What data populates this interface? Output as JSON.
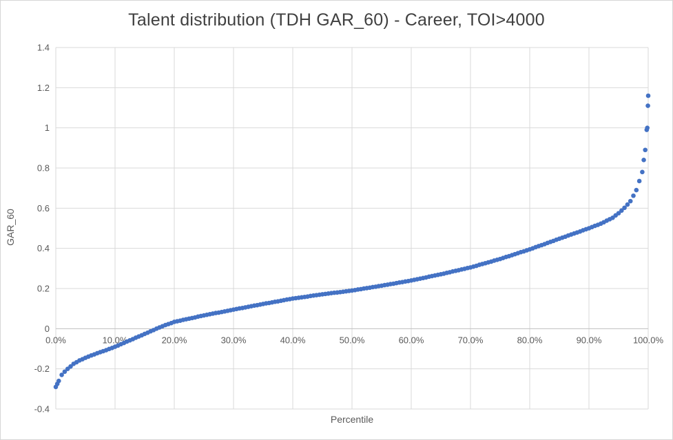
{
  "chart": {
    "title": "Talent distribution (TDH GAR_60) - Career, TOI>4000",
    "xlabel": "Percentile",
    "ylabel": "GAR_60"
  },
  "colors": {
    "marker": "#4472C4",
    "gridline": "#d9d9d9",
    "axis_line": "#bfbfbf",
    "tick_text": "#595959",
    "title_text": "#404040",
    "border": "#d6d6d6"
  },
  "chart_data": {
    "type": "scatter",
    "title": "Talent distribution (TDH GAR_60) - Career, TOI>4000",
    "xlabel": "Percentile",
    "ylabel": "GAR_60",
    "xlim": [
      0,
      100
    ],
    "ylim": [
      -0.4,
      1.4
    ],
    "grid": true,
    "legend": false,
    "marker_color": "#4472C4",
    "x_tick_values": [
      0,
      10,
      20,
      30,
      40,
      50,
      60,
      70,
      80,
      90,
      100
    ],
    "x_tick_labels": [
      "0.0%",
      "10.0%",
      "20.0%",
      "30.0%",
      "40.0%",
      "50.0%",
      "60.0%",
      "70.0%",
      "80.0%",
      "90.0%",
      "100.0%"
    ],
    "y_tick_values": [
      -0.4,
      -0.2,
      0,
      0.2,
      0.4,
      0.6,
      0.8,
      1,
      1.2,
      1.4
    ],
    "y_tick_labels": [
      "-0.4",
      "-0.2",
      "0",
      "0.2",
      "0.4",
      "0.6",
      "0.8",
      "1",
      "1.2",
      "1.4"
    ],
    "points": [
      [
        0,
        -0.29
      ],
      [
        0.25,
        -0.275
      ],
      [
        0.5,
        -0.26
      ],
      [
        1,
        -0.23
      ],
      [
        1.5,
        -0.214
      ],
      [
        2,
        -0.2
      ],
      [
        2.5,
        -0.188
      ],
      [
        3,
        -0.175
      ],
      [
        3.5,
        -0.167
      ],
      [
        4,
        -0.158
      ],
      [
        4.5,
        -0.152
      ],
      [
        5,
        -0.145
      ],
      [
        5.5,
        -0.139
      ],
      [
        6,
        -0.133
      ],
      [
        6.5,
        -0.128
      ],
      [
        7,
        -0.122
      ],
      [
        7.5,
        -0.117
      ],
      [
        8,
        -0.112
      ],
      [
        8.5,
        -0.107
      ],
      [
        9,
        -0.101
      ],
      [
        9.5,
        -0.096
      ],
      [
        10,
        -0.09
      ],
      [
        10.5,
        -0.084
      ],
      [
        11,
        -0.077
      ],
      [
        11.5,
        -0.071
      ],
      [
        12,
        -0.064
      ],
      [
        12.5,
        -0.058
      ],
      [
        13,
        -0.052
      ],
      [
        13.5,
        -0.045
      ],
      [
        14,
        -0.039
      ],
      [
        14.5,
        -0.033
      ],
      [
        15,
        -0.026
      ],
      [
        15.5,
        -0.02
      ],
      [
        16,
        -0.013
      ],
      [
        16.5,
        -0.007
      ],
      [
        17,
        0
      ],
      [
        17.5,
        0.006
      ],
      [
        18,
        0.012
      ],
      [
        18.5,
        0.018
      ],
      [
        19,
        0.023
      ],
      [
        19.5,
        0.028
      ],
      [
        20,
        0.034
      ],
      [
        20.5,
        0.037
      ],
      [
        21,
        0.04
      ],
      [
        21.5,
        0.044
      ],
      [
        22,
        0.047
      ],
      [
        22.5,
        0.05
      ],
      [
        23,
        0.053
      ],
      [
        23.5,
        0.056
      ],
      [
        24,
        0.06
      ],
      [
        24.5,
        0.063
      ],
      [
        25,
        0.066
      ],
      [
        25.5,
        0.069
      ],
      [
        26,
        0.072
      ],
      [
        26.5,
        0.075
      ],
      [
        27,
        0.078
      ],
      [
        27.5,
        0.08
      ],
      [
        28,
        0.083
      ],
      [
        28.5,
        0.086
      ],
      [
        29,
        0.089
      ],
      [
        29.5,
        0.092
      ],
      [
        30,
        0.095
      ],
      [
        30.5,
        0.098
      ],
      [
        31,
        0.101
      ],
      [
        31.5,
        0.103
      ],
      [
        32,
        0.106
      ],
      [
        32.5,
        0.109
      ],
      [
        33,
        0.112
      ],
      [
        33.5,
        0.115
      ],
      [
        34,
        0.117
      ],
      [
        34.5,
        0.12
      ],
      [
        35,
        0.123
      ],
      [
        35.5,
        0.126
      ],
      [
        36,
        0.128
      ],
      [
        36.5,
        0.131
      ],
      [
        37,
        0.134
      ],
      [
        37.5,
        0.136
      ],
      [
        38,
        0.139
      ],
      [
        38.5,
        0.142
      ],
      [
        39,
        0.145
      ],
      [
        39.5,
        0.147
      ],
      [
        40,
        0.15
      ],
      [
        40.5,
        0.152
      ],
      [
        41,
        0.154
      ],
      [
        41.5,
        0.156
      ],
      [
        42,
        0.158
      ],
      [
        42.5,
        0.16
      ],
      [
        43,
        0.163
      ],
      [
        43.5,
        0.165
      ],
      [
        44,
        0.167
      ],
      [
        44.5,
        0.169
      ],
      [
        45,
        0.171
      ],
      [
        45.5,
        0.173
      ],
      [
        46,
        0.175
      ],
      [
        46.5,
        0.177
      ],
      [
        47,
        0.179
      ],
      [
        47.5,
        0.18
      ],
      [
        48,
        0.182
      ],
      [
        48.5,
        0.184
      ],
      [
        49,
        0.186
      ],
      [
        49.5,
        0.188
      ],
      [
        50,
        0.19
      ],
      [
        50.5,
        0.192
      ],
      [
        51,
        0.195
      ],
      [
        51.5,
        0.197
      ],
      [
        52,
        0.2
      ],
      [
        52.5,
        0.202
      ],
      [
        53,
        0.204
      ],
      [
        53.5,
        0.207
      ],
      [
        54,
        0.209
      ],
      [
        54.5,
        0.212
      ],
      [
        55,
        0.214
      ],
      [
        55.5,
        0.217
      ],
      [
        56,
        0.219
      ],
      [
        56.5,
        0.222
      ],
      [
        57,
        0.224
      ],
      [
        57.5,
        0.227
      ],
      [
        58,
        0.23
      ],
      [
        58.5,
        0.232
      ],
      [
        59,
        0.235
      ],
      [
        59.5,
        0.237
      ],
      [
        60,
        0.24
      ],
      [
        60.5,
        0.243
      ],
      [
        61,
        0.246
      ],
      [
        61.5,
        0.249
      ],
      [
        62,
        0.252
      ],
      [
        62.5,
        0.255
      ],
      [
        63,
        0.259
      ],
      [
        63.5,
        0.262
      ],
      [
        64,
        0.265
      ],
      [
        64.5,
        0.268
      ],
      [
        65,
        0.271
      ],
      [
        65.5,
        0.274
      ],
      [
        66,
        0.278
      ],
      [
        66.5,
        0.281
      ],
      [
        67,
        0.285
      ],
      [
        67.5,
        0.288
      ],
      [
        68,
        0.291
      ],
      [
        68.5,
        0.295
      ],
      [
        69,
        0.298
      ],
      [
        69.5,
        0.302
      ],
      [
        70,
        0.305
      ],
      [
        70.5,
        0.309
      ],
      [
        71,
        0.313
      ],
      [
        71.5,
        0.318
      ],
      [
        72,
        0.322
      ],
      [
        72.5,
        0.326
      ],
      [
        73,
        0.33
      ],
      [
        73.5,
        0.334
      ],
      [
        74,
        0.339
      ],
      [
        74.5,
        0.343
      ],
      [
        75,
        0.347
      ],
      [
        75.5,
        0.352
      ],
      [
        76,
        0.357
      ],
      [
        76.5,
        0.361
      ],
      [
        77,
        0.366
      ],
      [
        77.5,
        0.371
      ],
      [
        78,
        0.376
      ],
      [
        78.5,
        0.381
      ],
      [
        79,
        0.385
      ],
      [
        79.5,
        0.39
      ],
      [
        80,
        0.395
      ],
      [
        80.5,
        0.4
      ],
      [
        81,
        0.406
      ],
      [
        81.5,
        0.411
      ],
      [
        82,
        0.416
      ],
      [
        82.5,
        0.421
      ],
      [
        83,
        0.427
      ],
      [
        83.5,
        0.432
      ],
      [
        84,
        0.437
      ],
      [
        84.5,
        0.443
      ],
      [
        85,
        0.448
      ],
      [
        85.5,
        0.453
      ],
      [
        86,
        0.458
      ],
      [
        86.5,
        0.464
      ],
      [
        87,
        0.469
      ],
      [
        87.5,
        0.474
      ],
      [
        88,
        0.479
      ],
      [
        88.5,
        0.484
      ],
      [
        89,
        0.49
      ],
      [
        89.5,
        0.495
      ],
      [
        90,
        0.5
      ],
      [
        90.5,
        0.506
      ],
      [
        91,
        0.512
      ],
      [
        91.5,
        0.517
      ],
      [
        92,
        0.523
      ],
      [
        92.5,
        0.53
      ],
      [
        93,
        0.538
      ],
      [
        93.5,
        0.545
      ],
      [
        94,
        0.552
      ],
      [
        94.5,
        0.564
      ],
      [
        95,
        0.575
      ],
      [
        95.5,
        0.588
      ],
      [
        96,
        0.602
      ],
      [
        96.5,
        0.618
      ],
      [
        97,
        0.635
      ],
      [
        97.5,
        0.662
      ],
      [
        98,
        0.69
      ],
      [
        98.5,
        0.735
      ],
      [
        99,
        0.78
      ],
      [
        99.25,
        0.84
      ],
      [
        99.5,
        0.89
      ],
      [
        99.75,
        0.99
      ],
      [
        99.85,
        1.0
      ],
      [
        99.95,
        1.11
      ],
      [
        100,
        1.16
      ]
    ]
  }
}
